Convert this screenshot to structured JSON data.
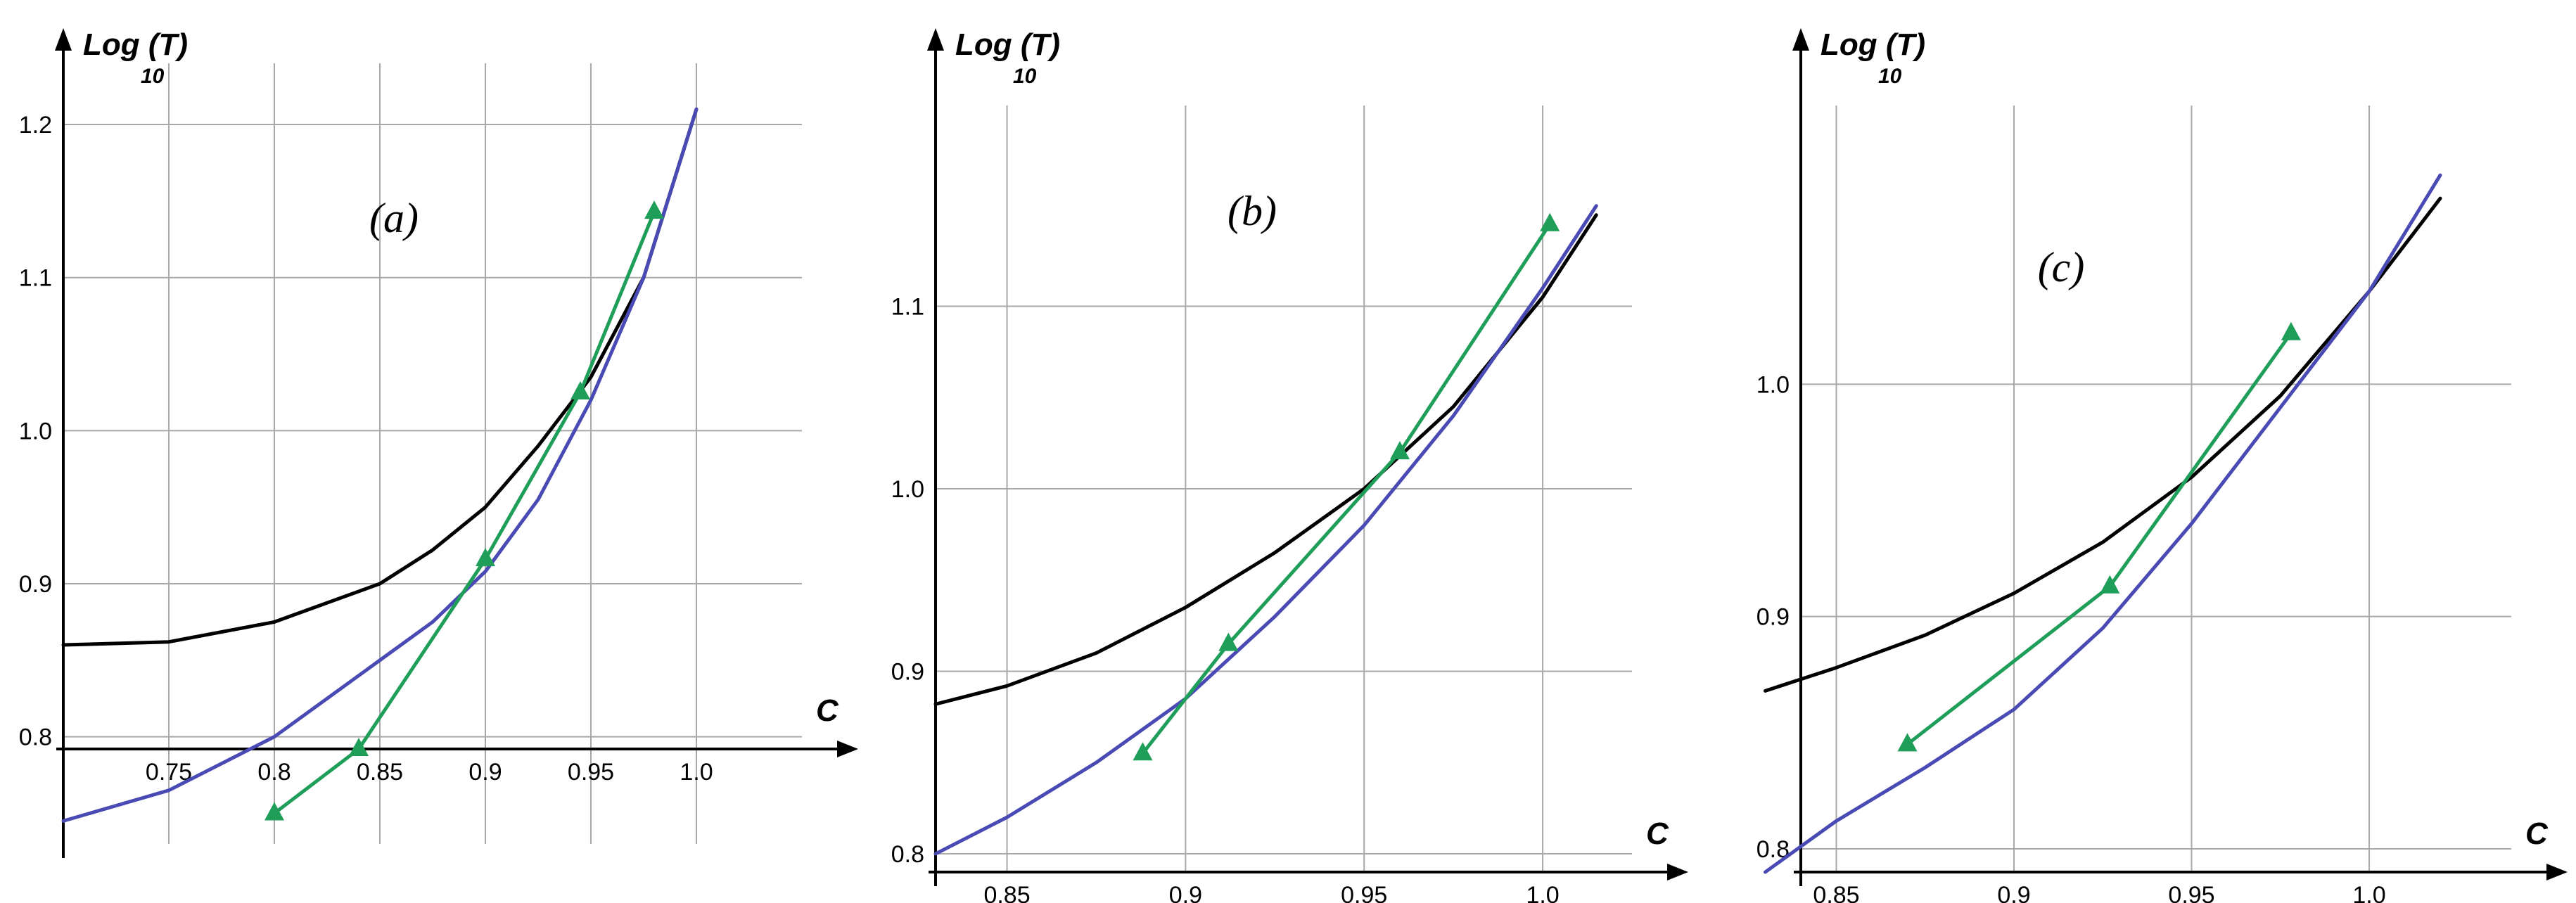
{
  "chart_data": [
    {
      "type": "line",
      "panel_label": "(a)",
      "ylabel": "Log",
      "ylabel_paren": "(T)",
      "ylabel_sub": "10",
      "xlabel": "C",
      "xlim": [
        0.7,
        1.05
      ],
      "ylim": [
        0.73,
        1.24
      ],
      "x_axis_y": 0.792,
      "y_axis_x": 0.7,
      "x_ticks": [
        0.75,
        0.8,
        0.85,
        0.9,
        0.95,
        1.0
      ],
      "x_tick_labels": [
        "0.75",
        "0.8",
        "0.85",
        "0.9",
        "0.95",
        "1.0"
      ],
      "y_ticks": [
        0.8,
        0.9,
        1.0,
        1.1,
        1.2
      ],
      "y_tick_labels": [
        "0.8",
        "0.9",
        "1.0",
        "1.1",
        "1.2"
      ],
      "grid": true,
      "series": [
        {
          "color": "#000000",
          "style": "line",
          "x": [
            0.7,
            0.75,
            0.8,
            0.85,
            0.875,
            0.9,
            0.925,
            0.95,
            0.975,
            1.0
          ],
          "y": [
            0.86,
            0.862,
            0.875,
            0.9,
            0.922,
            0.95,
            0.99,
            1.035,
            1.1,
            1.21
          ]
        },
        {
          "color": "#4a4ab5",
          "style": "line",
          "x": [
            0.7,
            0.75,
            0.8,
            0.85,
            0.875,
            0.9,
            0.925,
            0.95,
            0.975,
            1.0
          ],
          "y": [
            0.745,
            0.765,
            0.8,
            0.85,
            0.875,
            0.908,
            0.955,
            1.02,
            1.1,
            1.21
          ]
        },
        {
          "color": "#1f9e5a",
          "style": "line-triangle",
          "x": [
            0.8,
            0.84,
            0.9,
            0.945,
            0.98
          ],
          "y": [
            0.75,
            0.792,
            0.916,
            1.025,
            1.143
          ]
        }
      ]
    },
    {
      "type": "line",
      "panel_label": "(b)",
      "ylabel": "Log",
      "ylabel_paren": "(T)",
      "ylabel_sub": "10",
      "xlabel": "C",
      "xlim": [
        0.83,
        1.025
      ],
      "ylim": [
        0.79,
        1.21
      ],
      "x_axis_y": 0.79,
      "y_axis_x": 0.83,
      "x_ticks": [
        0.85,
        0.9,
        0.95,
        1.0
      ],
      "x_tick_labels": [
        "0.85",
        "0.9",
        "0.95",
        "1.0"
      ],
      "y_ticks": [
        0.8,
        0.9,
        1.0,
        1.1
      ],
      "y_tick_labels": [
        "0.8",
        "0.9",
        "1.0",
        "1.1"
      ],
      "grid": true,
      "series": [
        {
          "color": "#000000",
          "style": "line",
          "x": [
            0.83,
            0.85,
            0.875,
            0.9,
            0.925,
            0.95,
            0.975,
            1.0,
            1.015
          ],
          "y": [
            0.882,
            0.892,
            0.91,
            0.935,
            0.965,
            1.0,
            1.045,
            1.105,
            1.15
          ]
        },
        {
          "color": "#4a4ab5",
          "style": "line",
          "x": [
            0.83,
            0.85,
            0.875,
            0.9,
            0.925,
            0.95,
            0.975,
            1.0,
            1.015
          ],
          "y": [
            0.8,
            0.82,
            0.85,
            0.885,
            0.93,
            0.98,
            1.04,
            1.11,
            1.155
          ]
        },
        {
          "color": "#1f9e5a",
          "style": "line-triangle",
          "x": [
            0.888,
            0.912,
            0.96,
            1.002
          ],
          "y": [
            0.855,
            0.915,
            1.02,
            1.145
          ]
        }
      ]
    },
    {
      "type": "line",
      "panel_label": "(c)",
      "ylabel": "Log",
      "ylabel_paren": "(T)",
      "ylabel_sub": "10",
      "xlabel": "C",
      "xlim": [
        0.84,
        1.04
      ],
      "ylim": [
        0.79,
        1.12
      ],
      "x_axis_y": 0.79,
      "y_axis_x": 0.84,
      "x_ticks": [
        0.85,
        0.9,
        0.95,
        1.0
      ],
      "x_tick_labels": [
        "0.85",
        "0.9",
        "0.95",
        "1.0"
      ],
      "y_ticks": [
        0.8,
        0.9,
        1.0
      ],
      "y_tick_labels": [
        "0.8",
        "0.9",
        "1.0"
      ],
      "grid": true,
      "series": [
        {
          "color": "#000000",
          "style": "line",
          "x": [
            0.83,
            0.85,
            0.875,
            0.9,
            0.925,
            0.95,
            0.975,
            1.0,
            1.02
          ],
          "y": [
            0.868,
            0.878,
            0.892,
            0.91,
            0.932,
            0.96,
            0.995,
            1.04,
            1.08
          ]
        },
        {
          "color": "#4a4ab5",
          "style": "line",
          "x": [
            0.83,
            0.85,
            0.875,
            0.9,
            0.925,
            0.95,
            0.975,
            1.0,
            1.02
          ],
          "y": [
            0.79,
            0.812,
            0.835,
            0.86,
            0.895,
            0.94,
            0.99,
            1.04,
            1.09
          ]
        },
        {
          "color": "#1f9e5a",
          "style": "line-triangle",
          "x": [
            0.87,
            0.927,
            0.978
          ],
          "y": [
            0.845,
            0.913,
            1.022
          ]
        }
      ]
    }
  ]
}
